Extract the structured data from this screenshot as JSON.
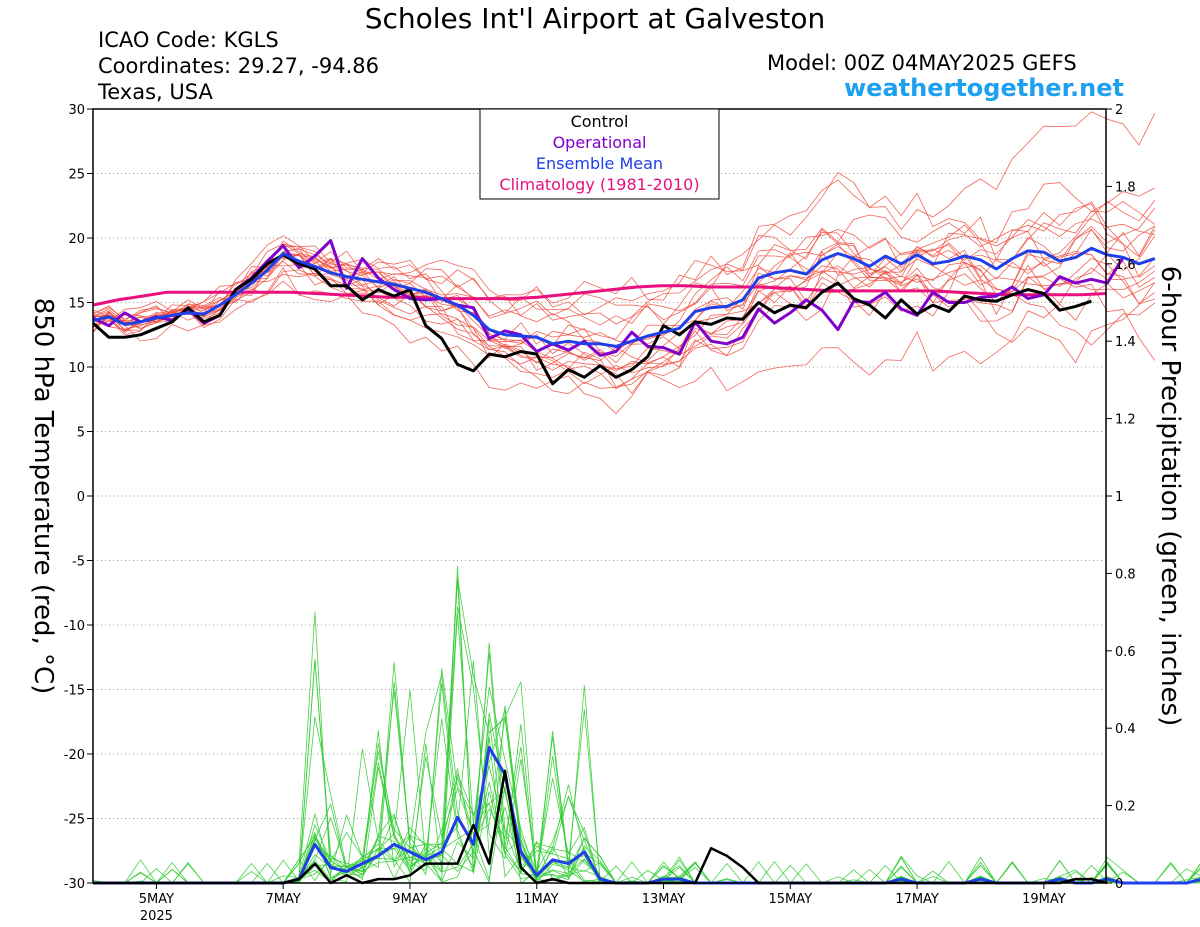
{
  "header": {
    "title": "Scholes Int'l Airport at Galveston",
    "icao": "ICAO Code: KGLS",
    "coordinates": "Coordinates: 29.27, -94.86",
    "location": "Texas, USA",
    "model": "Model: 00Z 04MAY2025 GEFS",
    "site": "weathertogether.net"
  },
  "colors": {
    "control": "#000000",
    "operational": "#8000cc",
    "mean": "#1f3fe8",
    "climatology": "#e8107e",
    "members_temp": "#f04a3c",
    "members_precip": "#33cc33",
    "site": "#1ea0f0"
  },
  "chart_data": {
    "type": "line",
    "ylabel": "850 hPa Temperature (red, °C)",
    "y2label": "6-hour Precipitation (green, inches)",
    "ylim": [
      -30,
      30
    ],
    "y2lim": [
      0,
      2
    ],
    "y_ticks": [
      "30",
      "25",
      "20",
      "15",
      "10",
      "5",
      "0",
      "-5",
      "-10",
      "-15",
      "-20",
      "-25",
      "-30"
    ],
    "y2_ticks": [
      "2",
      "1.8",
      "1.6",
      "1.4",
      "1.2",
      "1",
      "0.8",
      "0.6",
      "0.4",
      "0.2",
      "0"
    ],
    "x_ticks": [
      "5MAY",
      "7MAY",
      "9MAY",
      "11MAY",
      "13MAY",
      "15MAY",
      "17MAY",
      "19MAY"
    ],
    "x_sub": "2025",
    "x_tick_days": [
      5,
      7,
      9,
      11,
      13,
      15,
      17,
      19
    ],
    "xlim": [
      4.0,
      19.98
    ],
    "legend": [
      "Control",
      "Operational",
      "Ensemble Mean",
      "Climatology (1981-2010)"
    ],
    "legend_position": "top-center",
    "grid": "horizontal-dotted",
    "day0": 4.0,
    "step_days": 0.25,
    "series": [
      {
        "name": "Control",
        "axis": "left",
        "values": [
          13.4,
          12.3,
          12.3,
          12.5,
          13,
          13.5,
          14.6,
          13.5,
          14,
          16,
          16.8,
          18,
          18.7,
          18,
          17.6,
          16.3,
          16.3,
          15.2,
          16,
          15.5,
          16,
          13.2,
          12.2,
          10.2,
          9.7,
          11,
          10.8,
          11.2,
          11,
          8.7,
          9.8,
          9.2,
          10.1,
          9.2,
          9.8,
          10.8,
          13.2,
          12.5,
          13.5,
          13.3,
          13.8,
          13.7,
          15,
          14.2,
          14.8,
          14.6,
          15.8,
          16.5,
          15.3,
          14.8,
          13.8,
          15.2,
          14.1,
          14.8,
          14.3,
          15.5,
          15.2,
          15.1,
          15.6,
          16,
          15.7,
          14.4,
          14.7,
          15.1
        ]
      },
      {
        "name": "Operational",
        "axis": "left",
        "values": [
          13.8,
          13.2,
          14.2,
          13.5,
          13.9,
          13.6,
          14.5,
          13.4,
          14,
          16,
          16.9,
          18.2,
          19.4,
          17.7,
          18.6,
          19.8,
          16.1,
          18.4,
          16.9,
          16,
          15.3,
          15.2,
          15.3,
          14.8,
          14.6,
          12.2,
          12.8,
          12.5,
          11.2,
          11.8,
          11.3,
          12,
          10.9,
          11.2,
          12.7,
          11.6,
          11.5,
          11,
          13.5,
          12,
          11.8,
          12.3,
          14.5,
          13.4,
          14.2,
          15.2,
          14.4,
          12.9,
          15.1,
          15,
          15.8,
          14.5,
          14,
          15.8,
          15,
          15,
          15.4,
          15.5,
          16.2,
          15.3,
          15.6,
          17,
          16.5,
          16.8,
          16.5,
          18.5
        ]
      },
      {
        "name": "Ensemble Mean",
        "axis": "left",
        "values": [
          13.6,
          13.9,
          13.3,
          13.5,
          13.8,
          14,
          14.2,
          14.1,
          14.8,
          15.6,
          16.5,
          17.5,
          18.8,
          18.2,
          17.8,
          17.3,
          17,
          16.8,
          16.6,
          16.4,
          16.1,
          15.8,
          15.3,
          14.8,
          14,
          12.9,
          12.5,
          12.4,
          12.3,
          11.8,
          12,
          11.8,
          11.8,
          11.6,
          12,
          12.4,
          12.7,
          13,
          14.3,
          14.6,
          14.7,
          15.2,
          16.9,
          17.3,
          17.5,
          17.2,
          18.3,
          18.8,
          18.4,
          17.8,
          18.6,
          18,
          18.7,
          18,
          18.2,
          18.6,
          18.3,
          17.6,
          18.4,
          19,
          18.9,
          18.2,
          18.5,
          19.2,
          18.7,
          18.5,
          18,
          18.4
        ]
      },
      {
        "name": "Climatology (1981-2010)",
        "axis": "left",
        "values": [
          14.8,
          15.2,
          15.5,
          15.8,
          15.8,
          15.8,
          15.8,
          15.8,
          15.8,
          15.7,
          15.6,
          15.5,
          15.4,
          15.4,
          15.3,
          15.3,
          15.3,
          15.3,
          15.4,
          15.6,
          15.8,
          16,
          16.2,
          16.3,
          16.3,
          16.2,
          16.2,
          16.2,
          16.1,
          16,
          15.9,
          15.9,
          15.9,
          15.9,
          15.9,
          15.8,
          15.7,
          15.6,
          15.6,
          15.6,
          15.6,
          15.7
        ]
      },
      {
        "name": "Control precipitation",
        "axis": "right",
        "values": [
          0,
          0,
          0,
          0,
          0,
          0,
          0,
          0,
          0,
          0,
          0,
          0,
          0,
          0.01,
          0.05,
          0.0,
          0.02,
          0.0,
          0.01,
          0.01,
          0.02,
          0.05,
          0.05,
          0.05,
          0.15,
          0.05,
          0.29,
          0.04,
          0.0,
          0.01,
          0.0,
          0.0,
          0.0,
          0.0,
          0.0,
          0.0,
          0.0,
          0.0,
          0.0,
          0.09,
          0.07,
          0.04,
          0.0,
          0.0,
          0.0,
          0.0,
          0.0,
          0.0,
          0.0,
          0.0,
          0.0,
          0.0,
          0.0,
          0.0,
          0.0,
          0.0,
          0.0,
          0.0,
          0.0,
          0.0,
          0.0,
          0.0,
          0.01,
          0.01,
          0.0
        ]
      },
      {
        "name": "Ensemble Mean precipitation",
        "axis": "right",
        "values": [
          0,
          0,
          0,
          0,
          0,
          0,
          0,
          0,
          0,
          0,
          0,
          0,
          0,
          0.01,
          0.1,
          0.04,
          0.03,
          0.05,
          0.07,
          0.1,
          0.08,
          0.06,
          0.08,
          0.17,
          0.1,
          0.35,
          0.28,
          0.08,
          0.02,
          0.06,
          0.05,
          0.08,
          0.01,
          0.0,
          0.0,
          0.0,
          0.01,
          0.01,
          0.0,
          0.0,
          0.0,
          0.0,
          0.0,
          0.0,
          0.0,
          0.0,
          0.0,
          0.0,
          0.0,
          0.0,
          0.0,
          0.01,
          0.0,
          0.0,
          0.0,
          0.0,
          0.01,
          0.0,
          0.0,
          0.0,
          0.0,
          0.01,
          0.0,
          0.0,
          0.01,
          0.0,
          0.0,
          0.0,
          0.0,
          0.0,
          0.01,
          0.01,
          0.02,
          0.01
        ]
      }
    ]
  }
}
